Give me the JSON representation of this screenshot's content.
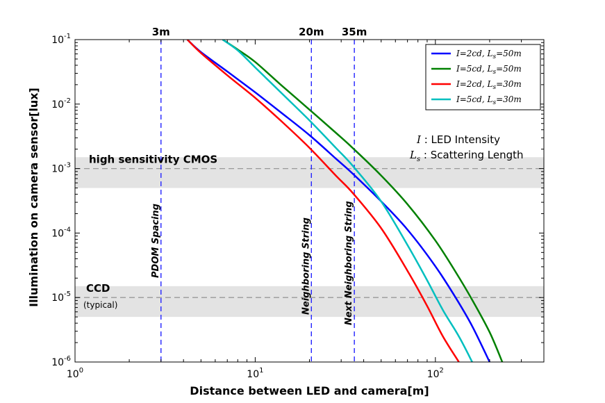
{
  "chart_data": {
    "type": "line",
    "xlabel": "Distance between LED and camera[m]",
    "ylabel": "Illumination on camera sensor[lux]",
    "xscale": "log",
    "yscale": "log",
    "xlim": [
      1,
      400
    ],
    "ylim": [
      1e-06,
      0.1
    ],
    "x_ticks": [
      {
        "value": 1,
        "label": "10^0"
      },
      {
        "value": 10,
        "label": "10^1"
      },
      {
        "value": 100,
        "label": "10^2"
      }
    ],
    "y_ticks": [
      {
        "value": 0.1,
        "label": "10^-1"
      },
      {
        "value": 0.01,
        "label": "10^-2"
      },
      {
        "value": 0.001,
        "label": "10^-3"
      },
      {
        "value": 0.0001,
        "label": "10^-4"
      },
      {
        "value": 1e-05,
        "label": "10^-5"
      },
      {
        "value": 1e-06,
        "label": "10^-6"
      }
    ],
    "grid": false,
    "legend_position": "top-right",
    "series": [
      {
        "name": "I=2cd, L_s=50m",
        "legend_I": "2cd",
        "legend_L": "50m",
        "color": "#0000ff",
        "x": [
          4.2,
          5,
          7,
          10,
          14,
          20,
          28,
          35,
          50,
          70,
          100,
          130,
          160,
          200
        ],
        "y": [
          0.1,
          0.064,
          0.032,
          0.0152,
          0.0073,
          0.0033,
          0.00143,
          0.00082,
          0.00031,
          0.000113,
          3.05e-05,
          9.8e-06,
          3.6e-06,
          1e-06
        ]
      },
      {
        "name": "I=5cd, L_s=50m",
        "legend_I": "5cd",
        "legend_L": "50m",
        "color": "#008000",
        "x": [
          6.6,
          8,
          10,
          14,
          20,
          28,
          35,
          50,
          70,
          100,
          130,
          160,
          200,
          235
        ],
        "y": [
          0.1,
          0.07,
          0.045,
          0.0195,
          0.0082,
          0.0036,
          0.00205,
          0.00078,
          0.00028,
          7.65e-05,
          2.45e-05,
          9.2e-06,
          2.9e-06,
          1e-06
        ]
      },
      {
        "name": "I=2cd, L_s=30m",
        "legend_I": "2cd",
        "legend_L": "30m",
        "color": "#ff0000",
        "x": [
          4.2,
          5,
          7,
          10,
          14,
          20,
          28,
          35,
          50,
          70,
          90,
          110,
          135
        ],
        "y": [
          0.1,
          0.062,
          0.028,
          0.0125,
          0.0054,
          0.0021,
          0.00078,
          0.00041,
          0.000119,
          2.6e-05,
          7.4e-06,
          2.5e-06,
          1e-06
        ]
      },
      {
        "name": "I=5cd, L_s=30m",
        "legend_I": "5cd",
        "legend_L": "30m",
        "color": "#00bfbf",
        "x": [
          6.6,
          8,
          10,
          14,
          20,
          28,
          35,
          50,
          70,
          90,
          110,
          135,
          160
        ],
        "y": [
          0.1,
          0.068,
          0.037,
          0.0148,
          0.0056,
          0.0021,
          0.00108,
          0.00031,
          6.52e-05,
          1.85e-05,
          6.4e-06,
          2.5e-06,
          1e-06
        ]
      }
    ],
    "bands": [
      {
        "label": "high sensitivity CMOS",
        "sublabel": "",
        "ymin": 0.0005,
        "ymax": 0.0015,
        "center": 0.001
      },
      {
        "label": "CCD",
        "sublabel": "(typical)",
        "ymin": 5e-06,
        "ymax": 1.5e-05,
        "center": 1e-05
      }
    ],
    "vlines": [
      {
        "x": 3,
        "top_label": "3m",
        "text": "PDOM Spacing"
      },
      {
        "x": 20.5,
        "top_label": "20m",
        "text": "Neighboring String"
      },
      {
        "x": 35.5,
        "top_label": "35m",
        "text": "Next Neighboring String"
      }
    ],
    "annotations": [
      {
        "symbol": "I",
        "sub": "",
        "text": ": LED Intensity"
      },
      {
        "symbol": "L",
        "sub": "s",
        "text": ": Scattering Length"
      }
    ]
  }
}
